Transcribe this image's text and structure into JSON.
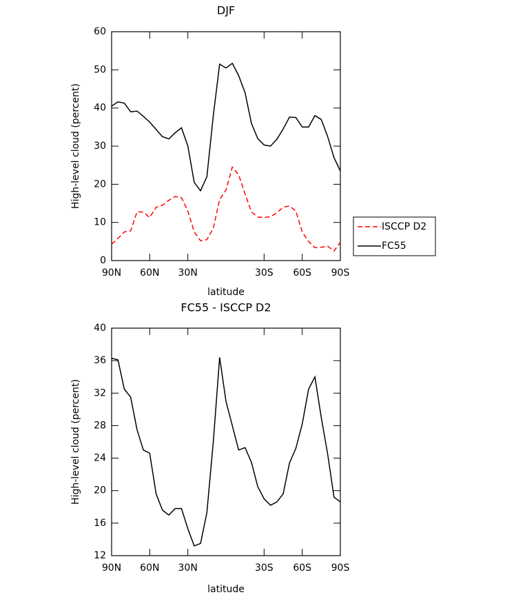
{
  "chart_data": [
    {
      "type": "line",
      "title": "DJF",
      "x_label": "latitude",
      "y_label": "High-level cloud (percent)",
      "x": [
        90,
        85,
        80,
        75,
        70,
        65,
        60,
        55,
        50,
        45,
        40,
        35,
        30,
        25,
        20,
        15,
        10,
        5,
        0,
        -5,
        -10,
        -15,
        -20,
        -25,
        -30,
        -35,
        -40,
        -45,
        -50,
        -55,
        -60,
        -65,
        -70,
        -75,
        -80,
        -85,
        -90
      ],
      "series": [
        {
          "name": "ISCCP D2",
          "color": "#ff0000",
          "style": "dashed",
          "values": [
            4.3,
            5.8,
            7.5,
            7.8,
            12.8,
            12.7,
            11.3,
            14,
            14.5,
            15.8,
            16.8,
            16.5,
            13,
            7.5,
            5.2,
            5.5,
            8.5,
            16,
            18.5,
            24.5,
            22.5,
            17.5,
            12.8,
            11.4,
            11.3,
            11.5,
            12.5,
            14,
            14.3,
            13,
            7.5,
            5,
            3.4,
            3.5,
            3.8,
            2.5,
            4.8
          ]
        },
        {
          "name": "FC55",
          "color": "#000000",
          "style": "solid",
          "values": [
            40.5,
            41.6,
            41.3,
            39,
            39.2,
            37.8,
            36.3,
            34.4,
            32.5,
            31.9,
            33.5,
            34.8,
            30,
            20.5,
            18.3,
            22,
            38,
            51.5,
            50.5,
            51.7,
            48.5,
            44,
            36,
            32,
            30.3,
            30,
            31.8,
            34.5,
            37.6,
            37.5,
            35,
            35,
            38,
            37,
            32.5,
            27,
            23.5
          ]
        }
      ],
      "xlim": [
        90,
        -90
      ],
      "xticks": [
        {
          "value": 90,
          "label": "90N"
        },
        {
          "value": 60,
          "label": "60N"
        },
        {
          "value": 30,
          "label": "30N"
        },
        {
          "value": -30,
          "label": "30S"
        },
        {
          "value": -60,
          "label": "60S"
        },
        {
          "value": -90,
          "label": "90S"
        }
      ],
      "ylim": [
        0,
        60
      ],
      "yticks": [
        0,
        10,
        20,
        30,
        40,
        50,
        60
      ],
      "legend": "right"
    },
    {
      "type": "line",
      "title": "FC55 - ISCCP D2",
      "x_label": "latitude",
      "y_label": "High-level cloud (percent)",
      "x": [
        90,
        85,
        80,
        75,
        70,
        65,
        60,
        55,
        50,
        45,
        40,
        35,
        30,
        25,
        20,
        15,
        10,
        5,
        0,
        -5,
        -10,
        -15,
        -20,
        -25,
        -30,
        -35,
        -40,
        -45,
        -50,
        -55,
        -60,
        -65,
        -70,
        -75,
        -80,
        -85,
        -90
      ],
      "series": [
        {
          "color": "#000000",
          "style": "solid",
          "values": [
            36.3,
            36.1,
            32.5,
            31.5,
            27.5,
            25,
            24.6,
            19.6,
            17.6,
            17,
            17.8,
            17.8,
            15.3,
            13.2,
            13.5,
            17.3,
            26,
            36.4,
            31,
            28,
            25,
            25.3,
            23.5,
            20.5,
            19,
            18.2,
            18.6,
            19.6,
            23.4,
            25.2,
            28.2,
            32.5,
            34,
            29,
            24.5,
            19.2,
            18.6
          ]
        }
      ],
      "xlim": [
        90,
        -90
      ],
      "xticks": [
        {
          "value": 90,
          "label": "90N"
        },
        {
          "value": 60,
          "label": "60N"
        },
        {
          "value": 30,
          "label": "30N"
        },
        {
          "value": -30,
          "label": "30S"
        },
        {
          "value": -60,
          "label": "60S"
        },
        {
          "value": -90,
          "label": "90S"
        }
      ],
      "ylim": [
        12,
        40
      ],
      "yticks": [
        12,
        16,
        20,
        24,
        28,
        32,
        36,
        40
      ]
    }
  ]
}
